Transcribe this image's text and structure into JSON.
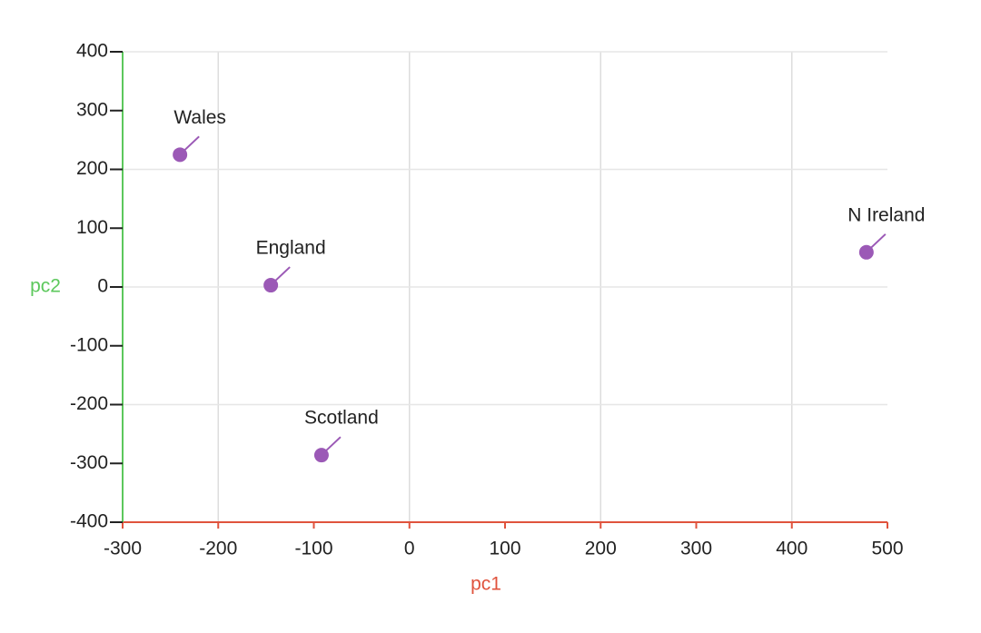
{
  "chart_data": {
    "type": "scatter",
    "x_label": "pc1",
    "y_label": "pc2",
    "x_axis_color": "#e0533d",
    "y_axis_color": "#5cc85c",
    "xlim": [
      -300,
      500
    ],
    "ylim": [
      -400,
      400
    ],
    "xticks": [
      -300,
      -200,
      -100,
      0,
      100,
      200,
      300,
      400,
      500
    ],
    "yticks": [
      -400,
      -300,
      -200,
      -100,
      0,
      100,
      200,
      300,
      400
    ],
    "xgrid": [
      -200,
      0,
      200,
      400
    ],
    "ygrid": [
      -400,
      -200,
      0,
      200,
      400
    ],
    "series": [
      {
        "color": "#9b59b6",
        "labels": [
          "Wales",
          "England",
          "Scotland",
          "N Ireland"
        ],
        "x": [
          -240,
          -145,
          -92,
          478
        ],
        "values": [
          225,
          3,
          -286,
          59
        ]
      }
    ]
  }
}
